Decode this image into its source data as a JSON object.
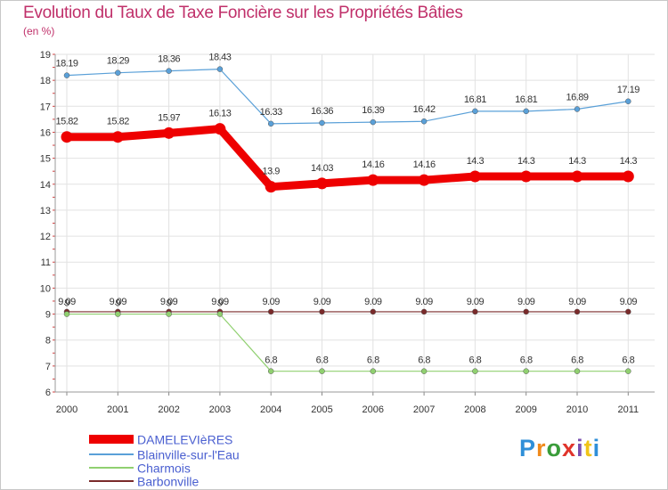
{
  "title": "Evolution du Taux de Taxe Foncière sur les Propriétés Bâties",
  "unit_label": "(en %)",
  "logo": {
    "text": "Proxiti",
    "colors": [
      "#2f8fd8",
      "#f08a1c",
      "#3a9c3a",
      "#e0342b",
      "#7a4fb0",
      "#f0c419",
      "#2f8fd8"
    ]
  },
  "chart_data": {
    "type": "line",
    "title": "Evolution du Taux de Taxe Foncière sur les Propriétés Bâties",
    "ylabel": "(en %)",
    "xlabel": "",
    "ylim": [
      6,
      19
    ],
    "yticks": [
      "6",
      "7",
      "8",
      "9",
      "10",
      "11",
      "12",
      "13",
      "14",
      "15",
      "16",
      "17",
      "18",
      "19"
    ],
    "categories": [
      "2000",
      "2001",
      "2002",
      "2003",
      "2004",
      "2005",
      "2006",
      "2007",
      "2008",
      "2009",
      "2010",
      "2011"
    ],
    "legend_position": "bottom-left",
    "series": [
      {
        "name": "DAMELEVIèRES",
        "color": "#ee0000",
        "values": [
          15.82,
          15.82,
          15.97,
          16.13,
          13.9,
          14.03,
          14.16,
          14.16,
          14.3,
          14.3,
          14.3,
          14.3
        ],
        "labels": [
          "15.82",
          "15.82",
          "15.97",
          "16.13",
          "13.9",
          "14.03",
          "14.16",
          "14.16",
          "14.3",
          "14.3",
          "14.3",
          "14.3"
        ]
      },
      {
        "name": "Blainville-sur-l'Eau",
        "color": "#5aa0d8",
        "values": [
          18.19,
          18.29,
          18.36,
          18.43,
          16.33,
          16.36,
          16.39,
          16.42,
          16.81,
          16.81,
          16.89,
          17.19
        ],
        "labels": [
          "18.19",
          "18.29",
          "18.36",
          "18.43",
          "16.33",
          "16.36",
          "16.39",
          "16.42",
          "16.81",
          "16.81",
          "16.89",
          "17.19"
        ]
      },
      {
        "name": "Charmois",
        "color": "#90d070",
        "values": [
          9.0,
          9.0,
          9.0,
          9.0,
          6.8,
          6.8,
          6.8,
          6.8,
          6.8,
          6.8,
          6.8,
          6.8
        ],
        "labels": [
          "9",
          "9",
          "9",
          "9",
          "6.8",
          "6.8",
          "6.8",
          "6.8",
          "6.8",
          "6.8",
          "6.8",
          "6.8"
        ]
      },
      {
        "name": "Barbonville",
        "color": "#7a2a2a",
        "values": [
          9.09,
          9.09,
          9.09,
          9.09,
          9.09,
          9.09,
          9.09,
          9.09,
          9.09,
          9.09,
          9.09,
          9.09
        ],
        "labels": [
          "9.09",
          "9.09",
          "9.09",
          "9.09",
          "9.09",
          "9.09",
          "9.09",
          "9.09",
          "9.09",
          "9.09",
          "9.09",
          "9.09"
        ]
      }
    ]
  }
}
